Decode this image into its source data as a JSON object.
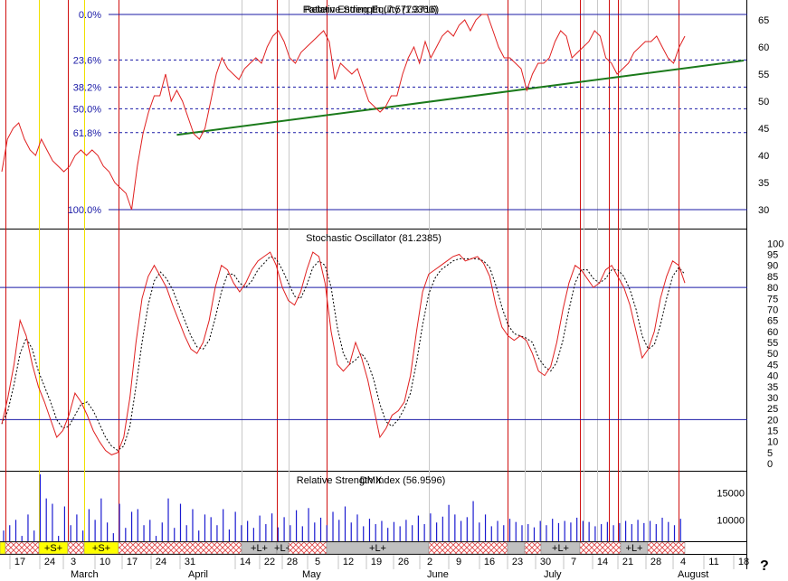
{
  "chart_data": [
    {
      "type": "line",
      "title": "Relative Strength (7.5779360)",
      "overlay_title": "Pattern Ending Equity (1.3716)",
      "y_ticks": [
        30,
        35,
        40,
        45,
        50,
        55,
        60,
        65
      ],
      "ylim": [
        27,
        68
      ],
      "fib_levels": [
        {
          "label": "0.0%",
          "value": 66
        },
        {
          "label": "23.6%",
          "value": 57.6
        },
        {
          "label": "38.2%",
          "value": 52.6
        },
        {
          "label": "50.0%",
          "value": 48.6
        },
        {
          "label": "61.8%",
          "value": 44.2
        },
        {
          "label": "100.0%",
          "value": 30.0
        }
      ],
      "trendline": {
        "x": [
          31,
          127
        ],
        "y": [
          43.8,
          57.5
        ]
      },
      "series": [
        {
          "values": [
            37,
            43,
            45,
            46,
            43,
            41,
            40,
            43,
            41,
            39,
            38,
            37,
            38,
            40,
            41,
            40,
            41,
            40,
            38,
            37,
            35,
            34,
            33,
            30,
            38,
            44,
            48,
            51,
            51,
            55,
            50,
            52,
            50,
            47,
            44,
            43,
            45,
            50,
            55,
            58,
            56,
            55,
            54,
            56,
            57,
            58,
            57,
            60,
            62,
            63,
            61,
            58,
            57,
            59,
            60,
            61,
            62,
            63,
            61,
            54,
            57,
            56,
            55,
            56,
            53,
            50,
            49,
            48,
            49,
            51,
            51,
            55,
            58,
            60,
            57,
            61,
            58,
            60,
            62,
            63,
            62,
            64,
            65,
            63,
            65,
            66,
            66,
            63,
            60,
            58,
            58,
            57,
            56,
            52,
            55,
            57,
            57,
            58,
            61,
            63,
            62,
            58,
            59,
            60,
            61,
            63,
            62,
            58,
            57,
            55,
            56,
            57,
            59,
            60,
            61,
            61,
            62,
            60,
            58,
            57,
            60,
            62
          ]
        }
      ]
    },
    {
      "type": "line",
      "title": "Stochastic Oscillator (81.2385)",
      "y_ticks": [
        0,
        5,
        10,
        15,
        20,
        25,
        30,
        35,
        40,
        45,
        50,
        55,
        60,
        65,
        70,
        75,
        80,
        85,
        90,
        95,
        100
      ],
      "ylim": [
        -2,
        103
      ],
      "ref_lines": [
        80,
        20
      ],
      "series": [
        {
          "name": "%K",
          "values": [
            18,
            30,
            45,
            65,
            58,
            45,
            35,
            28,
            20,
            12,
            15,
            22,
            32,
            28,
            22,
            15,
            10,
            6,
            4,
            5,
            12,
            30,
            55,
            75,
            85,
            90,
            85,
            80,
            72,
            65,
            58,
            52,
            50,
            55,
            65,
            80,
            90,
            88,
            82,
            78,
            82,
            88,
            92,
            94,
            96,
            90,
            80,
            74,
            72,
            78,
            88,
            96,
            94,
            82,
            60,
            45,
            42,
            45,
            55,
            48,
            38,
            25,
            12,
            16,
            22,
            24,
            28,
            40,
            60,
            78,
            86,
            88,
            90,
            92,
            94,
            95,
            92,
            93,
            94,
            91,
            85,
            72,
            62,
            58,
            56,
            58,
            56,
            50,
            42,
            40,
            44,
            55,
            70,
            82,
            90,
            88,
            84,
            80,
            82,
            88,
            90,
            85,
            80,
            72,
            60,
            48,
            52,
            60,
            75,
            85,
            92,
            90,
            82
          ]
        },
        {
          "name": "%D",
          "values": [
            18,
            24,
            36,
            50,
            57,
            52,
            42,
            35,
            28,
            20,
            16,
            17,
            22,
            27,
            28,
            24,
            18,
            12,
            8,
            6,
            8,
            17,
            35,
            55,
            72,
            83,
            87,
            84,
            79,
            72,
            65,
            58,
            53,
            52,
            56,
            66,
            78,
            86,
            86,
            82,
            80,
            83,
            88,
            91,
            94,
            93,
            88,
            82,
            76,
            75,
            81,
            89,
            92,
            90,
            80,
            62,
            50,
            45,
            47,
            50,
            46,
            38,
            27,
            19,
            17,
            20,
            25,
            32,
            46,
            63,
            77,
            84,
            88,
            90,
            92,
            93,
            93,
            93,
            93,
            92,
            89,
            81,
            71,
            63,
            59,
            58,
            57,
            55,
            48,
            44,
            42,
            46,
            56,
            70,
            82,
            88,
            88,
            84,
            82,
            84,
            88,
            88,
            85,
            79,
            70,
            58,
            52,
            54,
            63,
            75,
            85,
            89,
            86
          ]
        }
      ]
    },
    {
      "type": "bar",
      "title": "Relative Strength Index (56.9596)",
      "overlay_title": "DMX",
      "y_ticks": [
        10000,
        15000
      ],
      "y_tick_labels": [
        "10000",
        "15000"
      ],
      "ylim": [
        6000,
        19000
      ],
      "values": [
        8000,
        9000,
        10000,
        7000,
        11000,
        8000,
        18500,
        14000,
        13000,
        7000,
        12500,
        9000,
        11000,
        8000,
        12000,
        10000,
        14000,
        9500,
        7500,
        13000,
        8500,
        11500,
        12000,
        9000,
        10000,
        7000,
        9500,
        14000,
        8500,
        13000,
        9000,
        12000,
        8000,
        11000,
        10500,
        9000,
        12000,
        8200,
        11500,
        9000,
        9800,
        8500,
        10800,
        9200,
        11200,
        8600,
        10500,
        9000,
        11800,
        8800,
        12200,
        9500,
        10400,
        9000,
        11500,
        10000,
        12500,
        9500,
        11000,
        8800,
        10200,
        9200,
        9800,
        8500,
        9600,
        8800,
        10000,
        9000,
        10800,
        9200,
        11200,
        9500,
        10600,
        12800,
        11000,
        9800,
        10500,
        13500,
        9500,
        11000,
        8800,
        9800,
        9000,
        10200,
        9600,
        9000,
        9200,
        8600,
        9800,
        9000,
        10200,
        9400,
        9800,
        9500,
        10400,
        9800,
        9600,
        8800,
        9200,
        9600,
        9000,
        9400,
        9800,
        9200,
        10000,
        9400,
        9800,
        9200,
        10400,
        9600,
        9000,
        10200
      ]
    }
  ],
  "signal_strip": [
    {
      "label": "",
      "kind": "yellow"
    },
    {
      "label": "",
      "kind": "hatch"
    },
    {
      "label": "+S+",
      "kind": "yellow"
    },
    {
      "label": "",
      "kind": "hatch"
    },
    {
      "label": "+S+",
      "kind": "yellow"
    },
    {
      "label": "",
      "kind": "hatch"
    },
    {
      "label": "+L+",
      "kind": "gray"
    },
    {
      "label": "+L+",
      "kind": "gray"
    },
    {
      "label": "",
      "kind": "hatch"
    },
    {
      "label": "+L+",
      "kind": "gray"
    },
    {
      "label": "",
      "kind": "hatch"
    },
    {
      "label": "",
      "kind": "gray"
    },
    {
      "label": "",
      "kind": "hatch"
    },
    {
      "label": "+L+",
      "kind": "gray"
    },
    {
      "label": "",
      "kind": "hatch"
    },
    {
      "label": "+L+",
      "kind": "gray"
    },
    {
      "label": "",
      "kind": "hatch"
    }
  ],
  "x_axis": {
    "day_labels": [
      "17",
      "24",
      "3",
      "10",
      "17",
      "24",
      "31",
      "14",
      "22",
      "28",
      "5",
      "12",
      "19",
      "26",
      "2",
      "9",
      "16",
      "23",
      "30",
      "7",
      "14",
      "21",
      "28",
      "4",
      "11",
      "18"
    ],
    "month_labels": [
      "March",
      "April",
      "May",
      "June",
      "July",
      "August"
    ]
  },
  "help_mark": "?"
}
